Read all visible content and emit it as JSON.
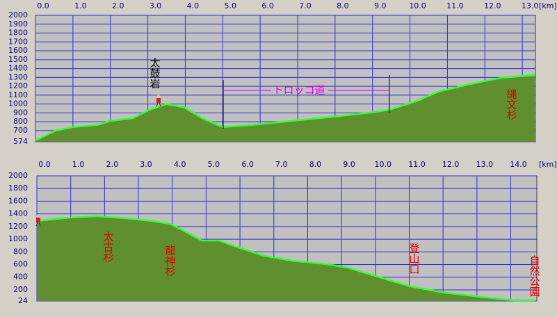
{
  "chart_data": [
    {
      "type": "area",
      "xlabel": "[km]",
      "x": [
        0,
        0.54,
        1.0,
        1.65,
        2.0,
        2.6,
        3.05,
        3.5,
        3.98,
        4.45,
        5.0,
        5.75,
        6.85,
        7.97,
        9.1,
        9.45,
        10.2,
        10.76,
        11.7,
        12.43,
        13.33
      ],
      "values": [
        590,
        700,
        740,
        763,
        810,
        840,
        935,
        1000,
        960,
        840,
        740,
        763,
        810,
        857,
        912,
        935,
        1037,
        1140,
        1233,
        1295,
        1327
      ],
      "color": "#33ff33",
      "fill": "#5f8f2f",
      "xlim": [
        0,
        13.35
      ],
      "ylim": [
        574,
        2000
      ],
      "xticks": [
        {
          "value": 0,
          "label": "0.0"
        },
        {
          "value": 1,
          "label": "1.0"
        },
        {
          "value": 2,
          "label": "2.0"
        },
        {
          "value": 3,
          "label": "3.0"
        },
        {
          "value": 4,
          "label": "4.0"
        },
        {
          "value": 5,
          "label": "5.0"
        },
        {
          "value": 6,
          "label": "6.0"
        },
        {
          "value": 7,
          "label": "7.0"
        },
        {
          "value": 8,
          "label": "8.0"
        },
        {
          "value": 9,
          "label": "9.0"
        },
        {
          "value": 10,
          "label": "10.0"
        },
        {
          "value": 11,
          "label": "11.0"
        },
        {
          "value": 12,
          "label": "12.0"
        },
        {
          "value": 13,
          "label": "13.0"
        }
      ],
      "yticks": [
        574,
        700,
        800,
        900,
        1000,
        1100,
        1200,
        1300,
        1400,
        1500,
        1600,
        1700,
        1800,
        1900,
        2000
      ],
      "grid": true,
      "annotations": [
        "太鼓岩",
        "トロッコ道",
        "縄文杉"
      ]
    },
    {
      "type": "area",
      "xlabel": "[km]",
      "x": [
        0,
        0.97,
        1.79,
        2.61,
        3.43,
        3.94,
        4.46,
        4.87,
        5.38,
        5.89,
        6.71,
        7.54,
        8.56,
        9.18,
        10.0,
        11.03,
        12.05,
        13.29,
        14.1,
        14.72
      ],
      "values": [
        1286,
        1341,
        1363,
        1330,
        1286,
        1243,
        1100,
        979,
        979,
        880,
        738,
        661,
        606,
        551,
        419,
        255,
        156,
        79,
        35,
        35
      ],
      "color": "#33ff33",
      "fill": "#5f8f2f",
      "xlim": [
        0,
        14.77
      ],
      "ylim": [
        24,
        2000
      ],
      "xticks": [
        {
          "value": 0,
          "label": "0.0"
        },
        {
          "value": 1,
          "label": "1.0"
        },
        {
          "value": 2,
          "label": "2.0"
        },
        {
          "value": 3,
          "label": "3.0"
        },
        {
          "value": 4,
          "label": "4.0"
        },
        {
          "value": 5,
          "label": "5.0"
        },
        {
          "value": 6,
          "label": "6.0"
        },
        {
          "value": 7,
          "label": "7.0"
        },
        {
          "value": 8,
          "label": "8.0"
        },
        {
          "value": 9,
          "label": "9.0"
        },
        {
          "value": 10,
          "label": "10.0"
        },
        {
          "value": 11,
          "label": "11.0"
        },
        {
          "value": 12,
          "label": "12.0"
        },
        {
          "value": 13,
          "label": "13.0"
        },
        {
          "value": 14,
          "label": "14.0"
        }
      ],
      "yticks": [
        24,
        200,
        400,
        600,
        800,
        1000,
        1200,
        1400,
        1600,
        1800,
        2000
      ],
      "grid": true,
      "annotations": [
        "太古杉",
        "龍神杉",
        "登山口",
        "自然公園"
      ]
    }
  ]
}
